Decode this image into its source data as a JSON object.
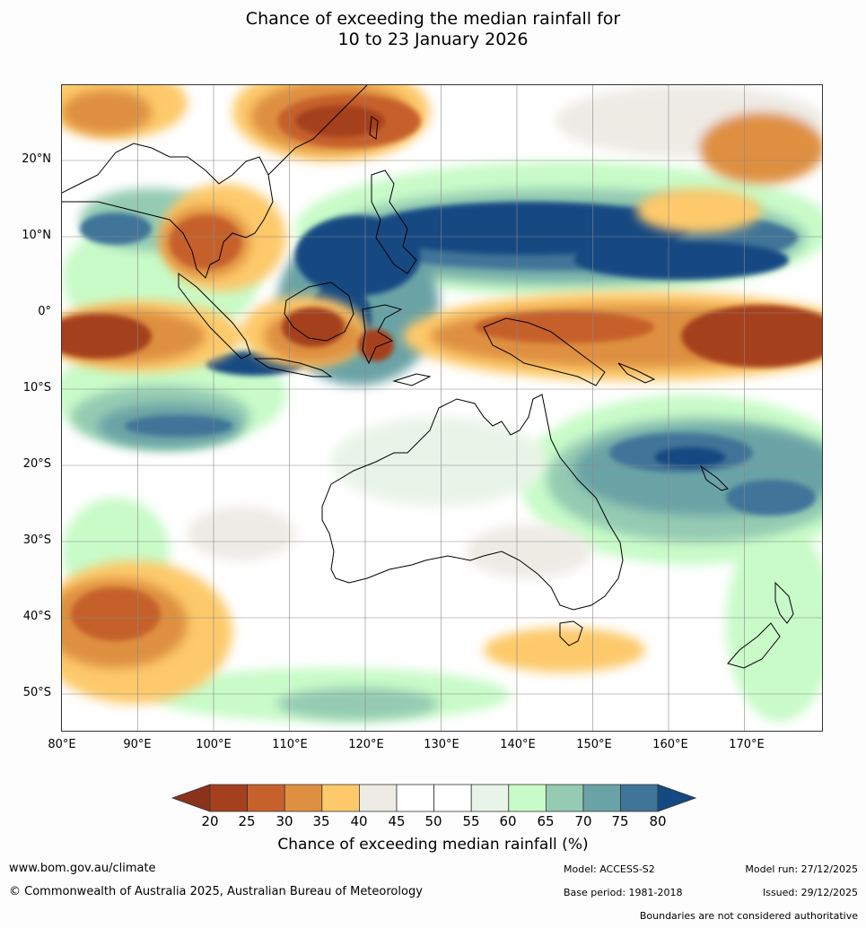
{
  "title_line1": "Chance of exceeding the median rainfall for",
  "title_line2": "10 to 23 January 2026",
  "lat_labels": [
    "20°N",
    "10°N",
    "0°",
    "10°S",
    "20°S",
    "30°S",
    "40°S",
    "50°S"
  ],
  "lon_labels": [
    "80°E",
    "90°E",
    "100°E",
    "110°E",
    "120°E",
    "130°E",
    "140°E",
    "150°E",
    "160°E",
    "170°E"
  ],
  "colorbar": {
    "ticks": [
      "20",
      "25",
      "30",
      "35",
      "40",
      "45",
      "50",
      "55",
      "60",
      "65",
      "70",
      "75",
      "80"
    ],
    "colors": [
      "#a5401f",
      "#c6612b",
      "#de9040",
      "#fdc96a",
      "#eeebe5",
      "#ffffff",
      "#ffffff",
      "#e9f4e8",
      "#c8fbc8",
      "#94cbb2",
      "#6aa3a6",
      "#3f7599"
    ],
    "under_color": "#8b341b",
    "over_color": "#134a82",
    "label": "Chance of exceeding median rainfall (%)"
  },
  "footer": {
    "website": "www.bom.gov.au/climate",
    "copyright": "© Commonwealth of Australia 2025, Australian Bureau of Meteorology",
    "model": "Model: ACCESS-S2",
    "base_period": "Base period: 1981-2018",
    "model_run": "Model run: 27/12/2025",
    "issued": "Issued: 29/12/2025",
    "disclaimer": "Boundaries are not considered authoritative"
  }
}
